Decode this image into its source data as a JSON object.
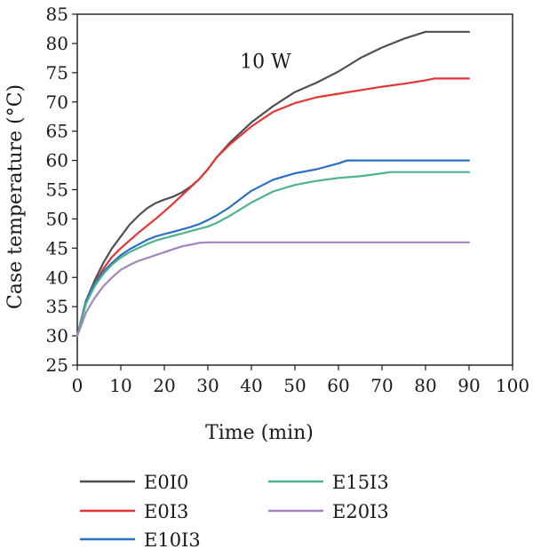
{
  "chart_data": {
    "type": "line",
    "title": "",
    "xlabel": "Time (min)",
    "ylabel": "Case temperature (°C)",
    "xlim": [
      0,
      100
    ],
    "ylim": [
      25,
      85
    ],
    "x_ticks": [
      0,
      10,
      20,
      30,
      40,
      50,
      60,
      70,
      80,
      90,
      100
    ],
    "y_ticks": [
      25,
      30,
      35,
      40,
      45,
      50,
      55,
      60,
      65,
      70,
      75,
      80,
      85
    ],
    "grid": false,
    "legend_position": "bottom",
    "annotation": {
      "text": "10 W",
      "x": 39,
      "y": 77
    },
    "series": [
      {
        "name": "E0I0",
        "color": "#505050",
        "x": [
          0,
          2,
          4,
          6,
          8,
          10,
          12,
          14,
          16,
          18,
          20,
          22,
          24,
          26,
          28,
          30,
          32,
          35,
          40,
          45,
          50,
          55,
          60,
          65,
          70,
          75,
          80,
          82,
          85,
          90
        ],
        "y": [
          30,
          36,
          39.5,
          42.5,
          45,
          47,
          49,
          50.5,
          51.8,
          52.7,
          53.3,
          53.8,
          54.5,
          55.5,
          56.8,
          58.5,
          60.5,
          63,
          66.5,
          69.3,
          71.7,
          73.3,
          75.2,
          77.5,
          79.3,
          80.8,
          82,
          82,
          82,
          82
        ]
      },
      {
        "name": "E0I3",
        "color": "#e63333",
        "x": [
          0,
          2,
          4,
          6,
          8,
          10,
          12,
          14,
          16,
          18,
          20,
          22,
          24,
          26,
          28,
          30,
          32,
          35,
          40,
          45,
          50,
          55,
          60,
          65,
          70,
          75,
          80,
          82,
          85,
          90
        ],
        "y": [
          30,
          36,
          39,
          41.5,
          43.5,
          45,
          46.3,
          47.6,
          48.8,
          50,
          51.3,
          52.6,
          54,
          55.4,
          56.8,
          58.5,
          60.5,
          62.7,
          65.8,
          68.3,
          69.8,
          70.8,
          71.4,
          72,
          72.6,
          73.1,
          73.7,
          74,
          74,
          74
        ]
      },
      {
        "name": "E10I3",
        "color": "#2b6fc4",
        "x": [
          0,
          2,
          4,
          6,
          8,
          10,
          12,
          14,
          16,
          18,
          20,
          22,
          24,
          26,
          28,
          30,
          32,
          35,
          40,
          45,
          50,
          55,
          60,
          62,
          65,
          70,
          75,
          80,
          85,
          90
        ],
        "y": [
          30,
          36,
          39,
          41,
          42.5,
          43.8,
          44.8,
          45.6,
          46.4,
          47,
          47.4,
          47.8,
          48.2,
          48.6,
          49.1,
          49.8,
          50.6,
          52,
          54.8,
          56.7,
          57.8,
          58.5,
          59.5,
          60,
          60,
          60,
          60,
          60,
          60,
          60
        ]
      },
      {
        "name": "E15I3",
        "color": "#4db38a",
        "x": [
          0,
          2,
          4,
          6,
          8,
          10,
          12,
          14,
          16,
          18,
          20,
          22,
          24,
          26,
          28,
          30,
          32,
          35,
          40,
          45,
          50,
          55,
          60,
          65,
          70,
          72,
          75,
          80,
          85,
          90
        ],
        "y": [
          30,
          35.5,
          38.5,
          40.6,
          42.2,
          43.4,
          44.3,
          45,
          45.7,
          46.3,
          46.7,
          47.1,
          47.5,
          47.9,
          48.3,
          48.7,
          49.3,
          50.5,
          52.8,
          54.7,
          55.8,
          56.5,
          57,
          57.3,
          57.8,
          58,
          58,
          58,
          58,
          58
        ]
      },
      {
        "name": "E20I3",
        "color": "#a383c2",
        "x": [
          0,
          2,
          4,
          6,
          8,
          10,
          12,
          14,
          16,
          18,
          20,
          22,
          24,
          26,
          28,
          30,
          35,
          40,
          45,
          50,
          55,
          60,
          65,
          70,
          75,
          80,
          85,
          90
        ],
        "y": [
          30,
          34,
          36.5,
          38.5,
          40,
          41.3,
          42.1,
          42.8,
          43.3,
          43.8,
          44.3,
          44.8,
          45.3,
          45.6,
          45.9,
          46,
          46,
          46,
          46,
          46,
          46,
          46,
          46,
          46,
          46,
          46,
          46,
          46
        ]
      }
    ]
  }
}
